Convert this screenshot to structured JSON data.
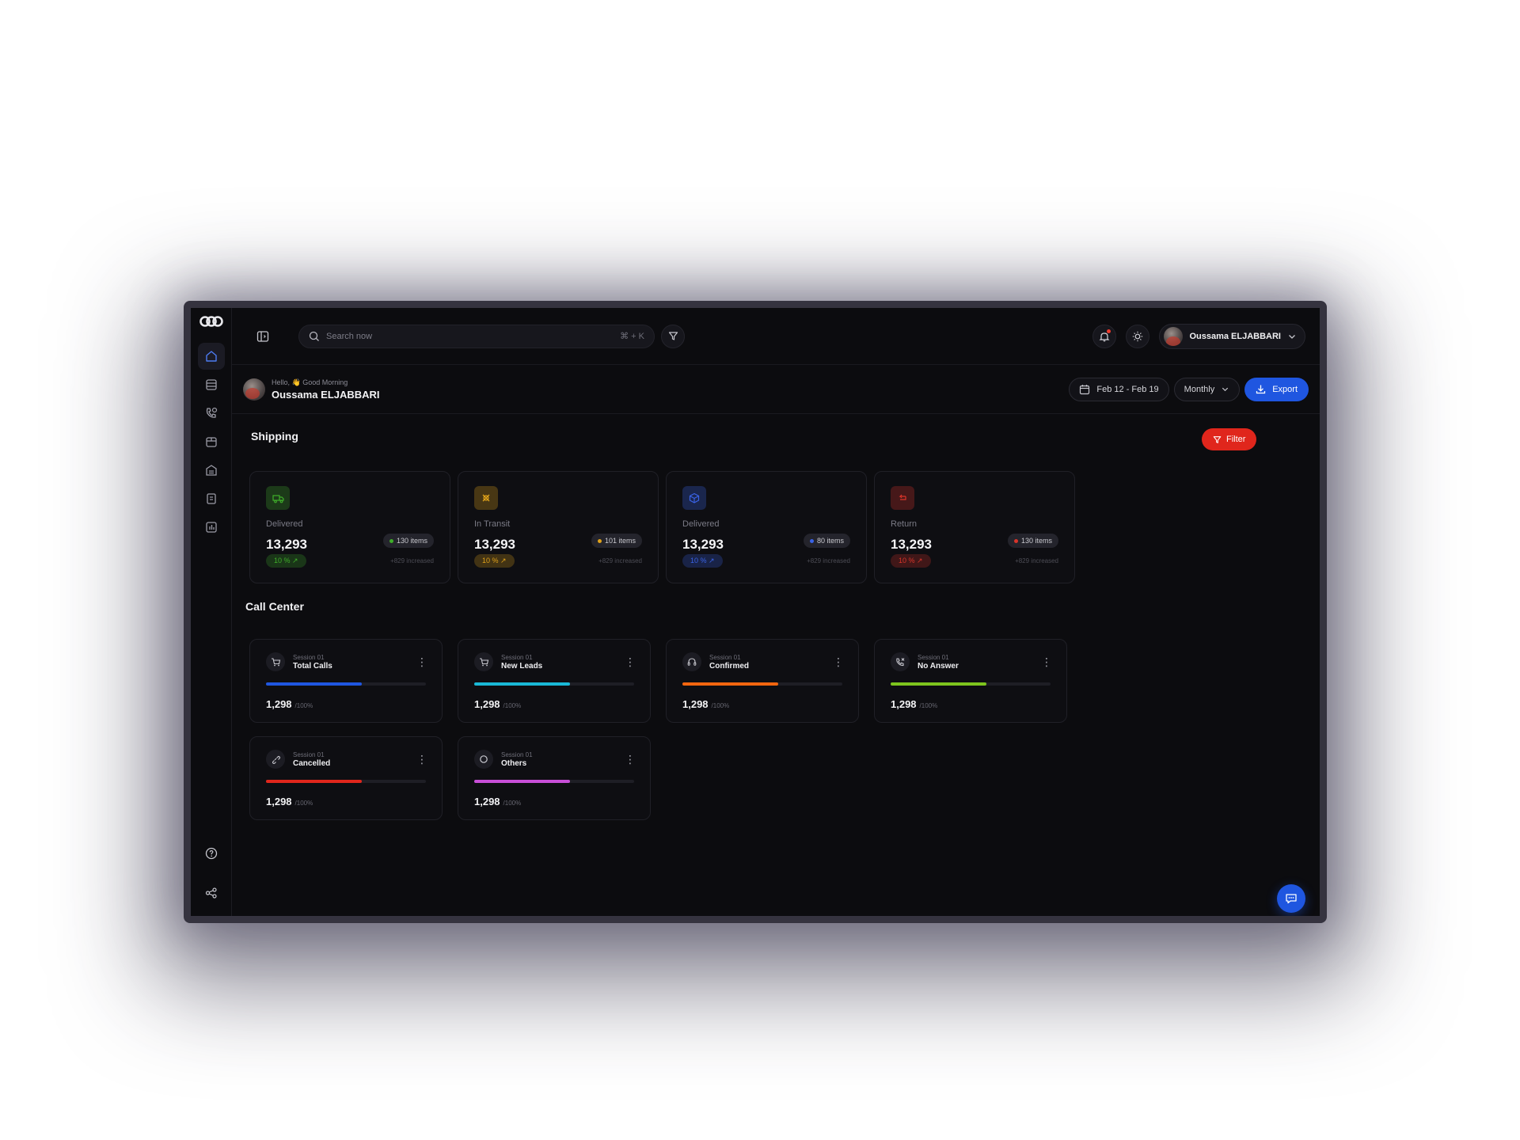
{
  "topbar": {
    "search_placeholder": "Search now",
    "shortcut": "⌘ + K",
    "user_name": "Oussama ELJABBARI"
  },
  "header": {
    "greeting": "Hello, 👋 Good Morning",
    "name": "Oussama ELJABBARI",
    "date_range": "Feb 12 - Feb 19",
    "period": "Monthly",
    "export_label": "Export"
  },
  "shipping": {
    "title": "Shipping",
    "filter_label": "Filter",
    "cards": [
      {
        "label": "Delivered",
        "value": "13,293",
        "items": "130 items",
        "pct": "10 % ↗",
        "increase": "+829 increased",
        "accent": "#3fae2a",
        "icon": "truck-icon"
      },
      {
        "label": "In Transit",
        "value": "13,293",
        "items": "101 items",
        "pct": "10 % ↗",
        "increase": "+829 increased",
        "accent": "#e0a21a",
        "icon": "transit-icon"
      },
      {
        "label": "Delivered",
        "value": "13,293",
        "items": "80 items",
        "pct": "10 % ↗",
        "increase": "+829 increased",
        "accent": "#3a63e6",
        "icon": "box-icon"
      },
      {
        "label": "Return",
        "value": "13,293",
        "items": "130 items",
        "pct": "10 % ↗",
        "increase": "+829 increased",
        "accent": "#d9342a",
        "icon": "return-icon"
      }
    ]
  },
  "call_center": {
    "title": "Call Center",
    "cards": [
      {
        "session": "Session 01",
        "name": "Total Calls",
        "value": "1,298",
        "suffix": "/100%",
        "progress": 0.6,
        "color": "#1f56e0",
        "icon": "cart-icon"
      },
      {
        "session": "Session 01",
        "name": "New Leads",
        "value": "1,298",
        "suffix": "/100%",
        "progress": 0.6,
        "color": "#19b8d6",
        "icon": "cart-icon"
      },
      {
        "session": "Session 01",
        "name": "Confirmed",
        "value": "1,298",
        "suffix": "/100%",
        "progress": 0.6,
        "color": "#f2650f",
        "icon": "headset-icon"
      },
      {
        "session": "Session 01",
        "name": "No Answer",
        "value": "1,298",
        "suffix": "/100%",
        "progress": 0.6,
        "color": "#7dc41d",
        "icon": "phone-missed-icon"
      },
      {
        "session": "Session 01",
        "name": "Cancelled",
        "value": "1,298",
        "suffix": "/100%",
        "progress": 0.6,
        "color": "#e0261c",
        "icon": "link-broken-icon"
      },
      {
        "session": "Session 01",
        "name": "Others",
        "value": "1,298",
        "suffix": "/100%",
        "progress": 0.6,
        "color": "#c84fd8",
        "icon": "circle-icon"
      }
    ]
  }
}
